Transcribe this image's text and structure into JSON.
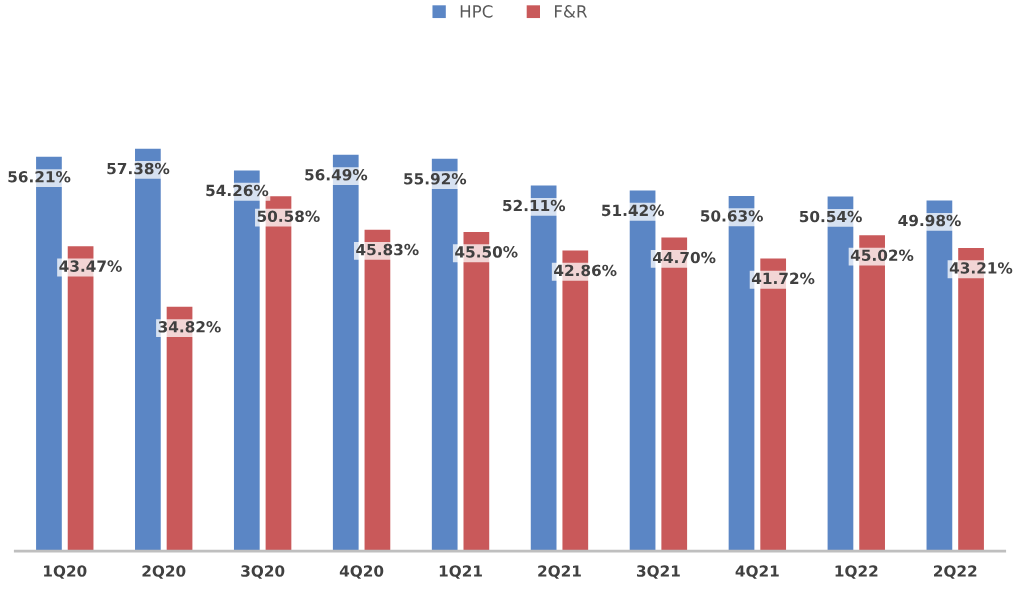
{
  "chart_data": {
    "type": "bar",
    "categories": [
      "1Q20",
      "2Q20",
      "3Q20",
      "4Q20",
      "1Q21",
      "2Q21",
      "3Q21",
      "4Q21",
      "1Q22",
      "2Q22"
    ],
    "series": [
      {
        "name": "HPC",
        "color": "#5b86c5",
        "values": [
          56.21,
          57.38,
          54.26,
          56.49,
          55.92,
          52.11,
          51.42,
          50.63,
          50.54,
          49.98
        ],
        "value_labels": [
          "56.21%",
          "57.38%",
          "54.26%",
          "56.49%",
          "55.92%",
          "52.11%",
          "51.42%",
          "50.63%",
          "50.54%",
          "49.98%"
        ]
      },
      {
        "name": "F&R",
        "color": "#c9595a",
        "values": [
          43.47,
          34.82,
          50.58,
          45.83,
          45.5,
          42.86,
          44.7,
          41.72,
          45.02,
          43.21
        ],
        "value_labels": [
          "43.47%",
          "34.82%",
          "50.58%",
          "45.83%",
          "45.50%",
          "42.86%",
          "44.70%",
          "41.72%",
          "45.02%",
          "43.21%"
        ]
      }
    ],
    "legend": "top",
    "tick_labels": "x"
  }
}
